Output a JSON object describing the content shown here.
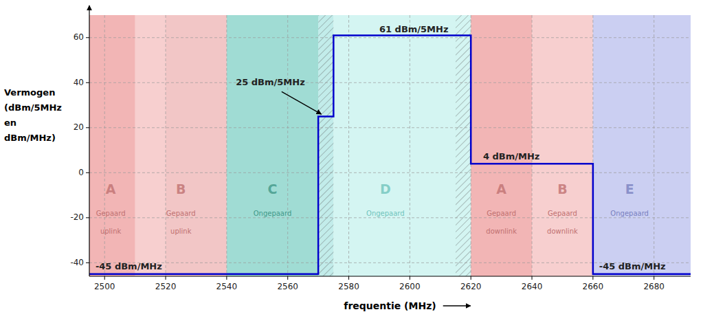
{
  "chart_data": {
    "type": "line",
    "xlabel": "frequentie (MHz)",
    "ylabel": "Vermogen (dBm/5MHz en dBm/MHz)",
    "xlim": [
      2495,
      2692
    ],
    "ylim": [
      -46,
      70
    ],
    "xticks": [
      2500,
      2520,
      2540,
      2560,
      2580,
      2600,
      2620,
      2640,
      2660,
      2680
    ],
    "yticks": [
      -40,
      -20,
      0,
      20,
      40,
      60
    ],
    "grid": true,
    "x": [
      2495,
      2570,
      2570,
      2575,
      2575,
      2620,
      2620,
      2660,
      2660,
      2692
    ],
    "values": [
      -45,
      -45,
      25,
      25,
      61,
      61,
      4,
      4,
      -45,
      -45
    ],
    "color": "#0000cc",
    "bands": [
      {
        "xmin": 2495,
        "xmax": 2510,
        "color": "#e87878"
      },
      {
        "xmin": 2510,
        "xmax": 2520,
        "color": "#f0a8a8"
      },
      {
        "xmin": 2520,
        "xmax": 2540,
        "color": "#e89898"
      },
      {
        "xmin": 2540,
        "xmax": 2570,
        "color": "#52bfb0"
      },
      {
        "xmin": 2570,
        "xmax": 2575,
        "color": "#90ddd8"
      },
      {
        "xmin": 2575,
        "xmax": 2615,
        "color": "#b0ece8"
      },
      {
        "xmin": 2615,
        "xmax": 2620,
        "color": "#b0ece8"
      },
      {
        "xmin": 2620,
        "xmax": 2640,
        "color": "#e87878"
      },
      {
        "xmin": 2640,
        "xmax": 2660,
        "color": "#f0a8a8"
      },
      {
        "xmin": 2660,
        "xmax": 2692,
        "color": "#a0a8e8"
      }
    ],
    "hatch_regions": [
      {
        "xmin": 2570,
        "xmax": 2575
      },
      {
        "xmin": 2615,
        "xmax": 2620
      }
    ],
    "region_labels": [
      {
        "label": "A",
        "sub1": "Gepaard",
        "sub2": "uplink",
        "x": 2502,
        "color": "#c07070"
      },
      {
        "label": "B",
        "sub1": "Gepaard",
        "sub2": "uplink",
        "x": 2525,
        "color": "#c07070"
      },
      {
        "label": "C",
        "sub1": "Ongepaard",
        "x": 2555,
        "color": "#409888"
      },
      {
        "label": "D",
        "sub1": "Ongepaard",
        "x": 2592,
        "color": "#70c4bc"
      },
      {
        "label": "A",
        "sub1": "Gepaard",
        "sub2": "downlink",
        "x": 2630,
        "color": "#c07070"
      },
      {
        "label": "B",
        "sub1": "Gepaard",
        "sub2": "downlink",
        "x": 2650,
        "color": "#c07070"
      },
      {
        "label": "E",
        "sub1": "Ongepaard",
        "x": 2672,
        "color": "#7880c0"
      }
    ],
    "annotations": [
      {
        "text": "61 dBm/5MHz",
        "x": 2590,
        "y": 63.5
      },
      {
        "text": "25 dBm/5MHz",
        "x": 2543,
        "y": 40
      },
      {
        "text": "4 dBm/MHz",
        "x": 2624,
        "y": 7
      },
      {
        "text": "-45 dBm/MHz",
        "x": 2497,
        "y": -42
      },
      {
        "text": "-45 dBm/MHz",
        "x": 2662,
        "y": -42
      }
    ],
    "arrows": [
      {
        "x0": 2558,
        "y0": 36,
        "x1": 2571,
        "y1": 26
      }
    ]
  }
}
